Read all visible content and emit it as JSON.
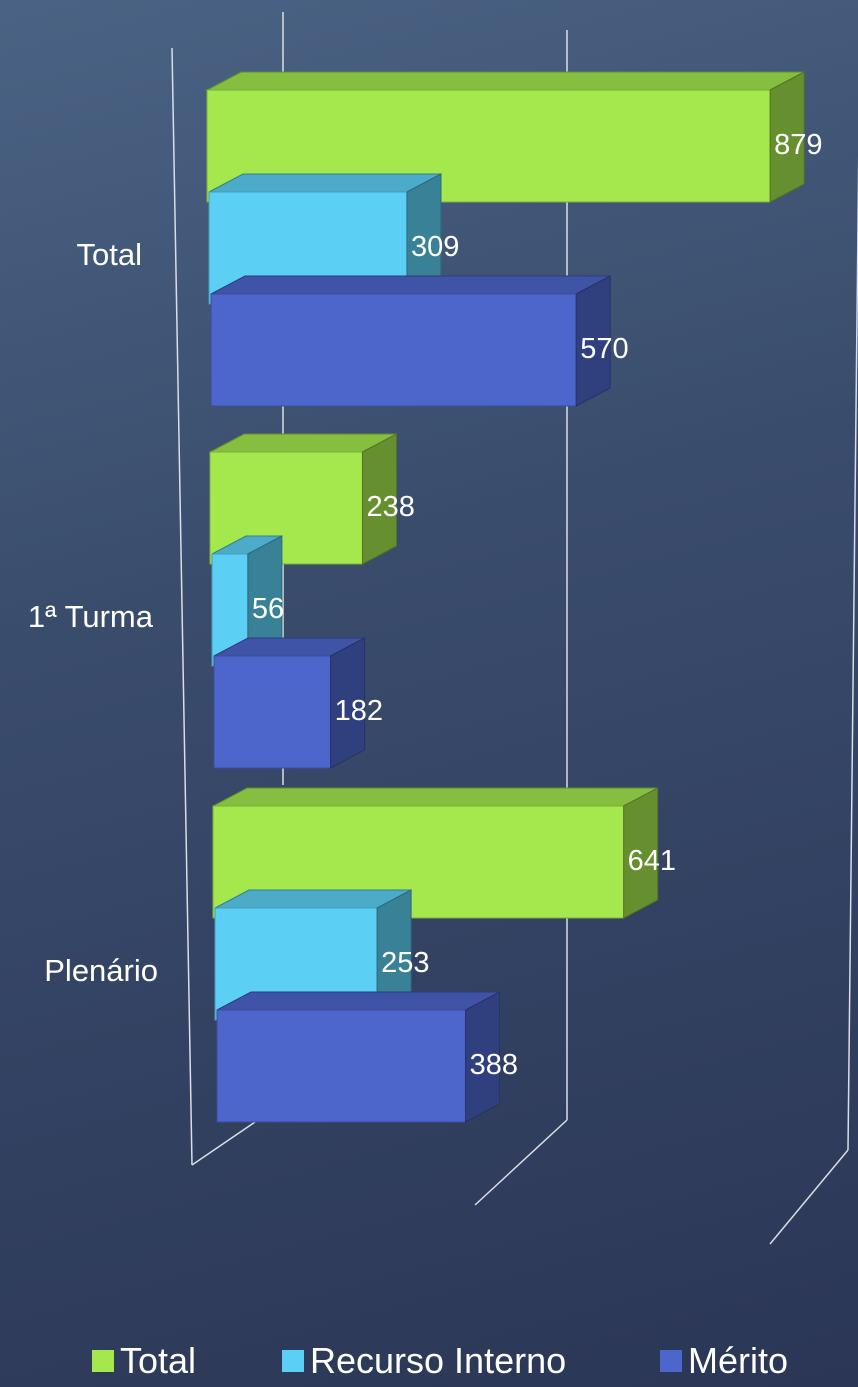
{
  "chart_data": {
    "type": "bar",
    "orientation": "horizontal",
    "style": "3d-clustered",
    "categories": [
      "Total",
      "1ª Turma",
      "Plenário"
    ],
    "series": [
      {
        "name": "Total",
        "values": [
          879,
          238,
          641
        ],
        "color": "#a4e84e"
      },
      {
        "name": "Recurso Interno",
        "values": [
          309,
          56,
          253
        ],
        "color": "#5cd0f4"
      },
      {
        "name": "Mérito",
        "values": [
          570,
          182,
          388
        ],
        "color": "#4d66cc"
      }
    ],
    "xlim": [
      0,
      1000
    ],
    "grid": true,
    "legend": "bottom"
  }
}
